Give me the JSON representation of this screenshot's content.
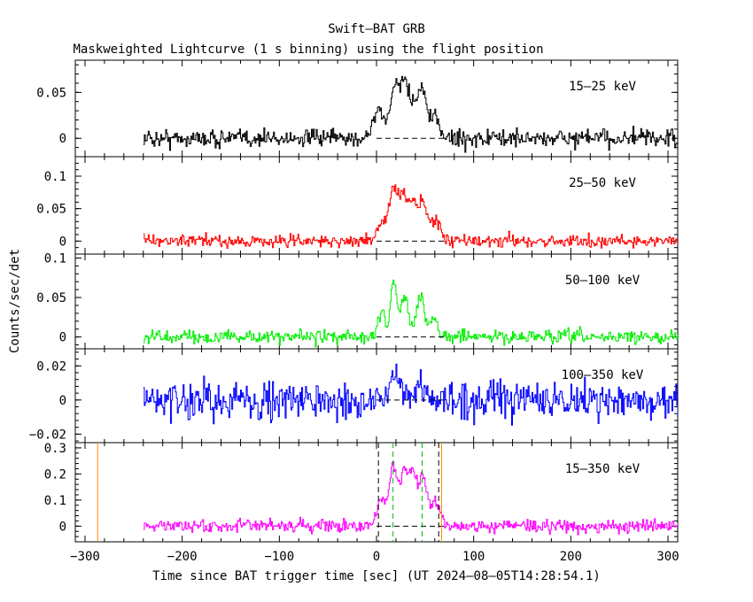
{
  "chart_data": {
    "type": "line",
    "title": "Swift–BAT GRB",
    "subtitle": "Maskweighted Lightcurve (1 s binning) using the flight position",
    "xlabel": "Time since BAT trigger time [sec] (UT 2024–08–05T14:28:54.1)",
    "ylabel": "Counts/sec/det",
    "xlim": [
      -310,
      310
    ],
    "x_ticks": [
      -300,
      -200,
      -100,
      0,
      100,
      200,
      300
    ],
    "x_tick_labels": [
      "−300",
      "−200",
      "−100",
      "0",
      "100",
      "200",
      "300"
    ],
    "data_x_range": [
      -240,
      310
    ],
    "grid": false,
    "panels": [
      {
        "name": "15–25 keV",
        "color": "#000000",
        "ylim": [
          -0.02,
          0.085
        ],
        "y_ticks": [
          0,
          0.05
        ],
        "y_tick_labels": [
          "0",
          "0.05"
        ],
        "background": 0.0,
        "noise_amplitude": 0.008,
        "pulses": [
          {
            "t": 2,
            "h": 0.03,
            "w": 6
          },
          {
            "t": 18,
            "h": 0.05,
            "w": 4
          },
          {
            "t": 28,
            "h": 0.06,
            "w": 5
          },
          {
            "t": 40,
            "h": 0.035,
            "w": 5
          },
          {
            "t": 48,
            "h": 0.04,
            "w": 4
          },
          {
            "t": 60,
            "h": 0.02,
            "w": 5
          }
        ]
      },
      {
        "name": "25–50 keV",
        "color": "#ff0000",
        "ylim": [
          -0.02,
          0.13
        ],
        "y_ticks": [
          0,
          0.05,
          0.1
        ],
        "y_tick_labels": [
          "0",
          "0.05",
          "0.1"
        ],
        "background": 0.0,
        "noise_amplitude": 0.008,
        "pulses": [
          {
            "t": 5,
            "h": 0.03,
            "w": 5
          },
          {
            "t": 17,
            "h": 0.08,
            "w": 4
          },
          {
            "t": 27,
            "h": 0.07,
            "w": 4
          },
          {
            "t": 37,
            "h": 0.06,
            "w": 4
          },
          {
            "t": 47,
            "h": 0.06,
            "w": 4
          },
          {
            "t": 60,
            "h": 0.035,
            "w": 5
          }
        ]
      },
      {
        "name": "50–100 keV",
        "color": "#00ee00",
        "ylim": [
          -0.015,
          0.105
        ],
        "y_ticks": [
          0,
          0.05,
          0.1
        ],
        "y_tick_labels": [
          "0",
          "0.05",
          "0.1"
        ],
        "background": 0.0,
        "noise_amplitude": 0.007,
        "pulses": [
          {
            "t": 5,
            "h": 0.03,
            "w": 4
          },
          {
            "t": 17,
            "h": 0.07,
            "w": 3
          },
          {
            "t": 28,
            "h": 0.055,
            "w": 4
          },
          {
            "t": 45,
            "h": 0.055,
            "w": 4
          },
          {
            "t": 58,
            "h": 0.025,
            "w": 4
          }
        ]
      },
      {
        "name": "100–350 keV",
        "color": "#0000ff",
        "ylim": [
          -0.025,
          0.03
        ],
        "y_ticks": [
          -0.02,
          0,
          0.02
        ],
        "y_tick_labels": [
          "−0.02",
          "0",
          "0.02"
        ],
        "background": 0.0,
        "noise_amplitude": 0.009,
        "pulses": [
          {
            "t": 18,
            "h": 0.012,
            "w": 5
          },
          {
            "t": 45,
            "h": 0.008,
            "w": 5
          }
        ]
      },
      {
        "name": "15–350 keV",
        "color": "#ff00ff",
        "ylim": [
          -0.06,
          0.32
        ],
        "y_ticks": [
          0,
          0.1,
          0.2,
          0.3
        ],
        "y_tick_labels": [
          "0",
          "0.1",
          "0.2",
          "0.3"
        ],
        "background": 0.0,
        "noise_amplitude": 0.02,
        "pulses": [
          {
            "t": 5,
            "h": 0.1,
            "w": 5
          },
          {
            "t": 17,
            "h": 0.23,
            "w": 4
          },
          {
            "t": 28,
            "h": 0.2,
            "w": 4
          },
          {
            "t": 37,
            "h": 0.18,
            "w": 4
          },
          {
            "t": 47,
            "h": 0.19,
            "w": 4
          },
          {
            "t": 60,
            "h": 0.1,
            "w": 5
          }
        ],
        "markers": [
          {
            "x": -287,
            "color": "#ff8800",
            "style": "solid"
          },
          {
            "x": 2,
            "color": "#000000",
            "style": "dashed"
          },
          {
            "x": 17,
            "color": "#00bb00",
            "style": "dashed"
          },
          {
            "x": 47,
            "color": "#00bb00",
            "style": "dashed"
          },
          {
            "x": 64,
            "color": "#000000",
            "style": "dashed"
          },
          {
            "x": 67,
            "color": "#ff8800",
            "style": "solid"
          }
        ]
      }
    ]
  }
}
